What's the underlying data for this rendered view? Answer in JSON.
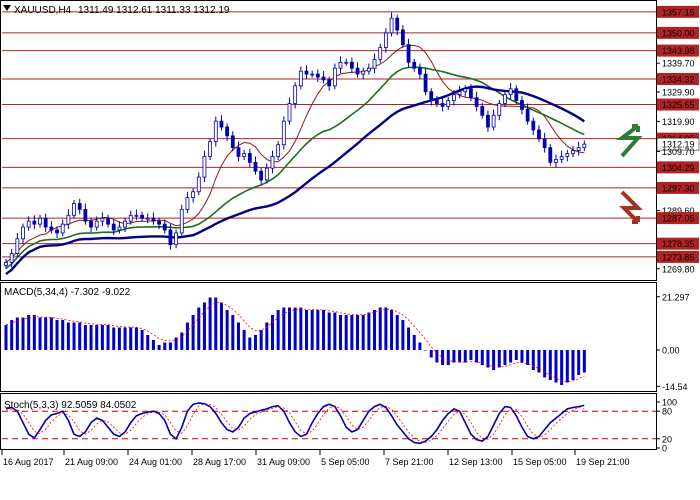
{
  "header": {
    "symbol_timeframe": "XAUUSD,H4",
    "ohlc": "1311.49 1312.61 1311.33 1312.19"
  },
  "colors": {
    "background": "#ffffff",
    "frame": "#000000",
    "level_line": "#b22222",
    "candle": "#0000b0",
    "ma_fast": "#8b1a1a",
    "ma_mid": "#1e6e1e",
    "ma_slow": "#00008b",
    "macd_hist": "#0000cc",
    "macd_signal": "#ff0000",
    "stoch_main": "#0000b0",
    "stoch_signal": "#ff0000",
    "arrow_up": "#2e7d32",
    "arrow_down": "#a33020",
    "price_tag_bg": "#b22222",
    "current_price_tag_bg": "#ffffff"
  },
  "main_panel": {
    "price_ticks": [
      "1357.15",
      "1350.00",
      "1343.98",
      "1339.70",
      "1334.32",
      "1329.90",
      "1325.65",
      "1319.90",
      "1314.05",
      "1312.19",
      "1309.70",
      "1304.29",
      "1297.30",
      "1289.60",
      "1287.05",
      "1278.35",
      "1273.85",
      "1269.80"
    ],
    "levels": [
      "1357.15",
      "1350.00",
      "1343.98",
      "1334.32",
      "1325.65",
      "1314.05",
      "1304.29",
      "1297.30",
      "1287.05",
      "1278.35",
      "1273.85"
    ],
    "current_price": "1312.19",
    "arrows": [
      {
        "name": "up-arrow",
        "direction": "up"
      },
      {
        "name": "down-arrow",
        "direction": "down"
      }
    ]
  },
  "macd_panel": {
    "label": "MACD(5,34,4) -7.302 -9.022",
    "ticks": [
      "21.297",
      "0.00",
      "-14.54"
    ]
  },
  "stoch_panel": {
    "label": "Stoch(5,3,3) 92.5059 84.0502",
    "ticks": [
      "100",
      "80",
      "20",
      "0"
    ]
  },
  "time_axis": {
    "labels": [
      "16 Aug 2017",
      "21 Aug 09:00",
      "24 Aug 01:00",
      "28 Aug 17:00",
      "31 Aug 09:00",
      "5 Sep 05:00",
      "7 Sep 21:00",
      "12 Sep 13:00",
      "15 Sep 05:00",
      "19 Sep 21:00"
    ]
  },
  "chart_data": {
    "type": "candlestick",
    "symbol": "XAUUSD",
    "timeframe": "H4",
    "closes": [
      1272,
      1275,
      1280,
      1284,
      1286,
      1285,
      1287,
      1284,
      1283,
      1282,
      1285,
      1288,
      1292,
      1290,
      1286,
      1284,
      1286,
      1287,
      1285,
      1283,
      1284,
      1286,
      1288,
      1288,
      1287,
      1287,
      1286,
      1285,
      1283,
      1278,
      1282,
      1290,
      1294,
      1296,
      1301,
      1308,
      1313,
      1320,
      1318,
      1315,
      1311,
      1308,
      1309,
      1306,
      1303,
      1300,
      1304,
      1308,
      1312,
      1320,
      1326,
      1332,
      1337,
      1336,
      1336,
      1335,
      1334,
      1332,
      1338,
      1340,
      1340,
      1338,
      1336,
      1337,
      1338,
      1341,
      1345,
      1350,
      1355,
      1351,
      1346,
      1340,
      1338,
      1336,
      1330,
      1327,
      1326,
      1325,
      1327,
      1329,
      1330,
      1331,
      1328,
      1325,
      1322,
      1318,
      1322,
      1326,
      1329,
      1331,
      1327,
      1324,
      1320,
      1317,
      1314,
      1311,
      1306,
      1307,
      1308,
      1309,
      1310,
      1311,
      1312.19
    ],
    "macd_hist": [
      10,
      12,
      13,
      13,
      14,
      14,
      13,
      13,
      13,
      12,
      12,
      11,
      11,
      11,
      10,
      10,
      10,
      10,
      10,
      9,
      9,
      9,
      9,
      9,
      8,
      6,
      4,
      2,
      3,
      3,
      5,
      7,
      11,
      14,
      17,
      19,
      21,
      21,
      19,
      16,
      14,
      11,
      8,
      5,
      6,
      8,
      11,
      14,
      16,
      17,
      17,
      17,
      17,
      16,
      16,
      16,
      16,
      15,
      15,
      14,
      14,
      14,
      14,
      14,
      15,
      16,
      17,
      17,
      16,
      14,
      12,
      9,
      6,
      3,
      0,
      -3,
      -5,
      -6,
      -6,
      -5,
      -5,
      -5,
      -4,
      -5,
      -6,
      -7,
      -8,
      -7,
      -6,
      -5,
      -4,
      -5,
      -6,
      -8,
      -9,
      -11,
      -12,
      -13,
      -14,
      -13,
      -12,
      -10,
      -9
    ],
    "stoch_main": [
      85,
      88,
      80,
      55,
      30,
      22,
      40,
      60,
      72,
      75,
      80,
      60,
      30,
      25,
      35,
      55,
      65,
      60,
      45,
      30,
      25,
      35,
      55,
      70,
      75,
      78,
      80,
      75,
      60,
      30,
      20,
      45,
      80,
      95,
      98,
      96,
      90,
      75,
      55,
      40,
      35,
      45,
      65,
      75,
      78,
      82,
      85,
      90,
      92,
      80,
      55,
      35,
      25,
      30,
      55,
      75,
      90,
      95,
      90,
      70,
      45,
      35,
      40,
      60,
      80,
      90,
      95,
      88,
      70,
      50,
      35,
      20,
      12,
      10,
      15,
      25,
      40,
      60,
      75,
      85,
      80,
      55,
      30,
      18,
      15,
      25,
      50,
      75,
      90,
      88,
      70,
      45,
      25,
      20,
      25,
      40,
      55,
      65,
      75,
      85,
      88,
      90,
      92.5
    ],
    "stoch_signal": [
      80,
      84,
      84,
      74,
      55,
      36,
      31,
      41,
      57,
      69,
      76,
      72,
      57,
      38,
      30,
      38,
      52,
      60,
      57,
      45,
      33,
      30,
      38,
      53,
      67,
      74,
      78,
      78,
      72,
      55,
      37,
      32,
      48,
      73,
      91,
      96,
      95,
      87,
      73,
      57,
      43,
      39,
      48,
      62,
      73,
      78,
      82,
      86,
      89,
      87,
      76,
      57,
      38,
      30,
      37,
      53,
      73,
      87,
      92,
      85,
      68,
      50,
      40,
      45,
      60,
      77,
      88,
      91,
      84,
      69,
      52,
      35,
      22,
      14,
      12,
      17,
      27,
      42,
      58,
      73,
      80,
      73,
      55,
      34,
      21,
      19,
      30,
      50,
      72,
      84,
      83,
      68,
      47,
      30,
      23,
      28,
      40,
      53,
      65,
      75,
      83,
      88,
      84.05
    ],
    "price_range": [
      1266.0,
      1360.5
    ],
    "levels": [
      1357.15,
      1350.0,
      1343.98,
      1334.32,
      1325.65,
      1314.05,
      1304.29,
      1297.3,
      1287.05,
      1278.35,
      1273.85
    ]
  }
}
